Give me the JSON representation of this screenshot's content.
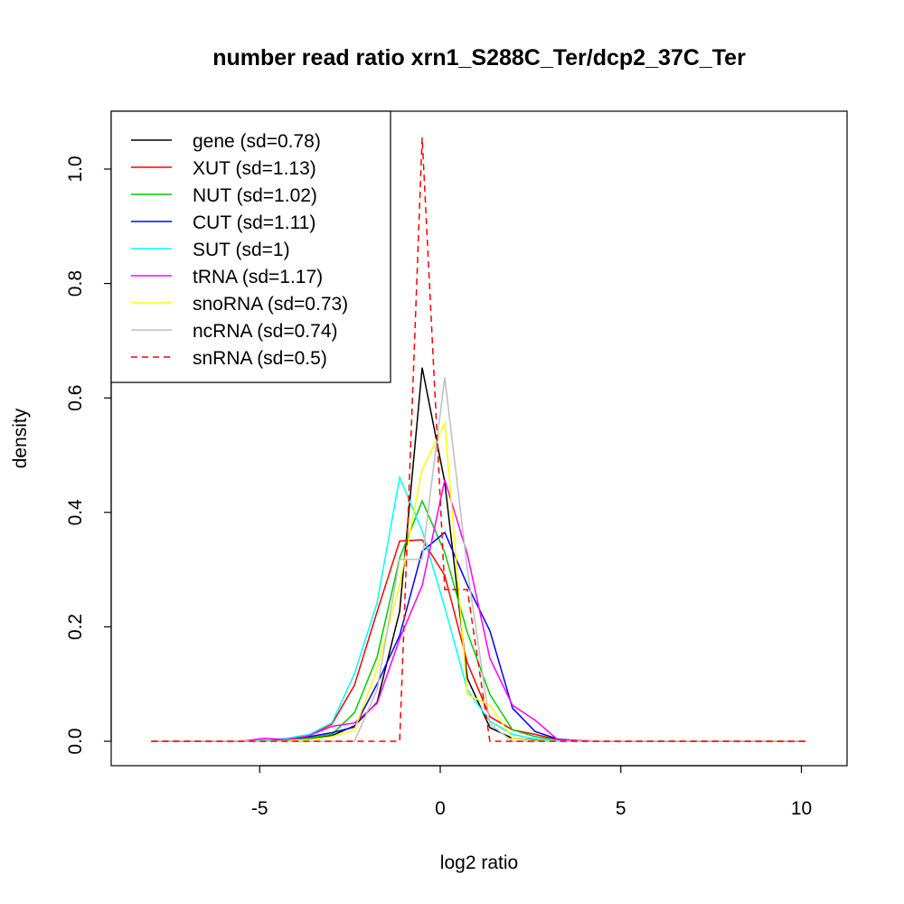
{
  "chart_data": {
    "type": "line",
    "title": "number read ratio xrn1_S288C_Ter/dcp2_37C_Ter",
    "xlabel": "log2 ratio",
    "ylabel": "density",
    "xlim": [
      -9,
      11.25
    ],
    "ylim": [
      -0.04,
      1.1
    ],
    "x_ticks": [
      -5,
      0,
      5,
      10
    ],
    "x_tick_labels": [
      "-5",
      "0",
      "5",
      "10"
    ],
    "y_ticks": [
      0,
      0.2,
      0.4,
      0.6,
      0.8,
      1.0
    ],
    "y_tick_labels": [
      "0.0",
      "0.2",
      "0.4",
      "0.6",
      "0.8",
      "1.0"
    ],
    "legend_position": "top-left",
    "x_start": -8,
    "x_step": 0.625,
    "series": [
      {
        "name": "gene (sd=0.78)",
        "color": "#000000",
        "dashed": false,
        "values": [
          0,
          0,
          0,
          0,
          0,
          0.001,
          0.003,
          0.005,
          0.01,
          0.027,
          0.068,
          0.227,
          0.653,
          0.453,
          0.11,
          0.024,
          0.005,
          0.002,
          0.001,
          0,
          0,
          0,
          0,
          0,
          0,
          0,
          0,
          0,
          0,
          0
        ]
      },
      {
        "name": "XUT (sd=1.13)",
        "color": "#ff0000",
        "dashed": false,
        "values": [
          0,
          0,
          0,
          0,
          0,
          0.002,
          0.004,
          0.01,
          0.03,
          0.098,
          0.226,
          0.35,
          0.352,
          0.29,
          0.137,
          0.043,
          0.02,
          0.012,
          0.003,
          0.001,
          0,
          0,
          0,
          0,
          0,
          0,
          0,
          0,
          0,
          0
        ]
      },
      {
        "name": "NUT (sd=1.02)",
        "color": "#00cd00",
        "dashed": false,
        "values": [
          0,
          0,
          0,
          0,
          0,
          0.001,
          0.003,
          0.006,
          0.012,
          0.05,
          0.147,
          0.32,
          0.42,
          0.33,
          0.19,
          0.082,
          0.02,
          0.008,
          0.002,
          0,
          0,
          0,
          0,
          0,
          0,
          0,
          0,
          0,
          0,
          0
        ]
      },
      {
        "name": "CUT (sd=1.11)",
        "color": "#0000ff",
        "dashed": false,
        "values": [
          0,
          0,
          0,
          0,
          0,
          0.001,
          0.004,
          0.008,
          0.015,
          0.025,
          0.1,
          0.185,
          0.332,
          0.365,
          0.273,
          0.193,
          0.058,
          0.017,
          0.004,
          0.001,
          0,
          0,
          0,
          0,
          0,
          0,
          0,
          0,
          0,
          0
        ]
      },
      {
        "name": "SUT (sd=1)",
        "color": "#00ffff",
        "dashed": false,
        "values": [
          0,
          0,
          0,
          0,
          0,
          0.002,
          0.005,
          0.012,
          0.032,
          0.118,
          0.242,
          0.461,
          0.368,
          0.234,
          0.09,
          0.035,
          0.012,
          0.004,
          0.001,
          0,
          0,
          0,
          0,
          0,
          0,
          0,
          0,
          0,
          0,
          0
        ]
      },
      {
        "name": "tRNA (sd=1.17)",
        "color": "#ff00ff",
        "dashed": false,
        "values": [
          0,
          0,
          0,
          0,
          0,
          0.005,
          0.003,
          0.01,
          0.026,
          0.032,
          0.066,
          0.179,
          0.272,
          0.457,
          0.327,
          0.145,
          0.063,
          0.037,
          0.003,
          0.001,
          0,
          0,
          0,
          0,
          0,
          0,
          0,
          0,
          0,
          0
        ]
      },
      {
        "name": "snoRNA (sd=0.73)",
        "color": "#ffff00",
        "dashed": false,
        "values": [
          0,
          0,
          0,
          0,
          0,
          0,
          0.001,
          0.003,
          0.008,
          0.02,
          0.126,
          0.273,
          0.475,
          0.556,
          0.082,
          0.063,
          0.005,
          0.001,
          0,
          0,
          0,
          0,
          0,
          0,
          0,
          0,
          0,
          0,
          0,
          0
        ]
      },
      {
        "name": "ncRNA (sd=0.74)",
        "color": "#bebebe",
        "dashed": false,
        "values": [
          0,
          0,
          0,
          0,
          0,
          0,
          0,
          0,
          0,
          0,
          0.09,
          0.318,
          0.318,
          0.636,
          0.3,
          0.03,
          0,
          0,
          0,
          0,
          0,
          0,
          0,
          0,
          0,
          0,
          0,
          0,
          0,
          0
        ]
      },
      {
        "name": "snRNA (sd=0.5)",
        "color": "#ff0000",
        "dashed": true,
        "values": [
          0,
          0,
          0,
          0,
          0,
          0,
          0,
          0,
          0,
          0,
          0,
          0,
          1.055,
          0.265,
          0.265,
          0,
          0,
          0,
          0,
          0,
          0,
          0,
          0,
          0,
          0,
          0,
          0,
          0,
          0,
          0
        ]
      }
    ]
  }
}
